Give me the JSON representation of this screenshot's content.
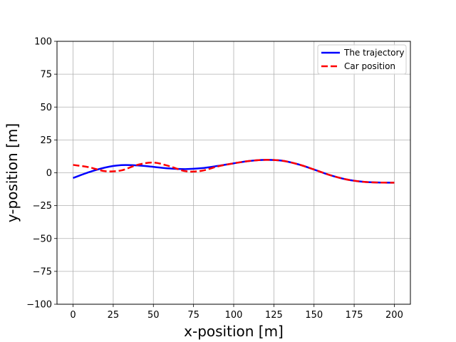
{
  "chart_data": {
    "type": "line",
    "title": "",
    "xlabel": "x-position [m]",
    "ylabel": "y-position [m]",
    "xlim": [
      -10,
      210
    ],
    "ylim": [
      -100,
      100
    ],
    "xticks": [
      0,
      25,
      50,
      75,
      100,
      125,
      150,
      175,
      200
    ],
    "yticks": [
      -100,
      -75,
      -50,
      -25,
      0,
      25,
      50,
      75,
      100
    ],
    "grid": true,
    "legend_position": "top-right",
    "series": [
      {
        "name": "The trajectory",
        "color": "#0000ff",
        "style": "solid",
        "x": [
          0,
          10,
          20,
          30,
          40,
          50,
          60,
          70,
          80,
          90,
          100,
          110,
          120,
          130,
          140,
          150,
          160,
          170,
          180,
          190,
          200
        ],
        "y": [
          -4,
          0.5,
          4,
          5.8,
          5.6,
          4.5,
          3.3,
          2.8,
          3.5,
          5.2,
          7.2,
          9,
          9.8,
          9.2,
          6.5,
          2.5,
          -1.8,
          -5,
          -6.8,
          -7.4,
          -7.5
        ]
      },
      {
        "name": "Car position",
        "color": "#ff0000",
        "style": "dashed",
        "x": [
          0,
          10,
          20,
          30,
          40,
          50,
          60,
          70,
          80,
          90,
          100,
          110,
          120,
          130,
          140,
          150,
          160,
          170,
          180,
          190,
          200
        ],
        "y": [
          6,
          4.2,
          1.2,
          1.8,
          6,
          7.8,
          5,
          1.2,
          1.5,
          4.8,
          7.2,
          9,
          9.8,
          9.2,
          6.5,
          2.5,
          -1.8,
          -5,
          -6.8,
          -7.4,
          -7.5
        ]
      }
    ]
  }
}
